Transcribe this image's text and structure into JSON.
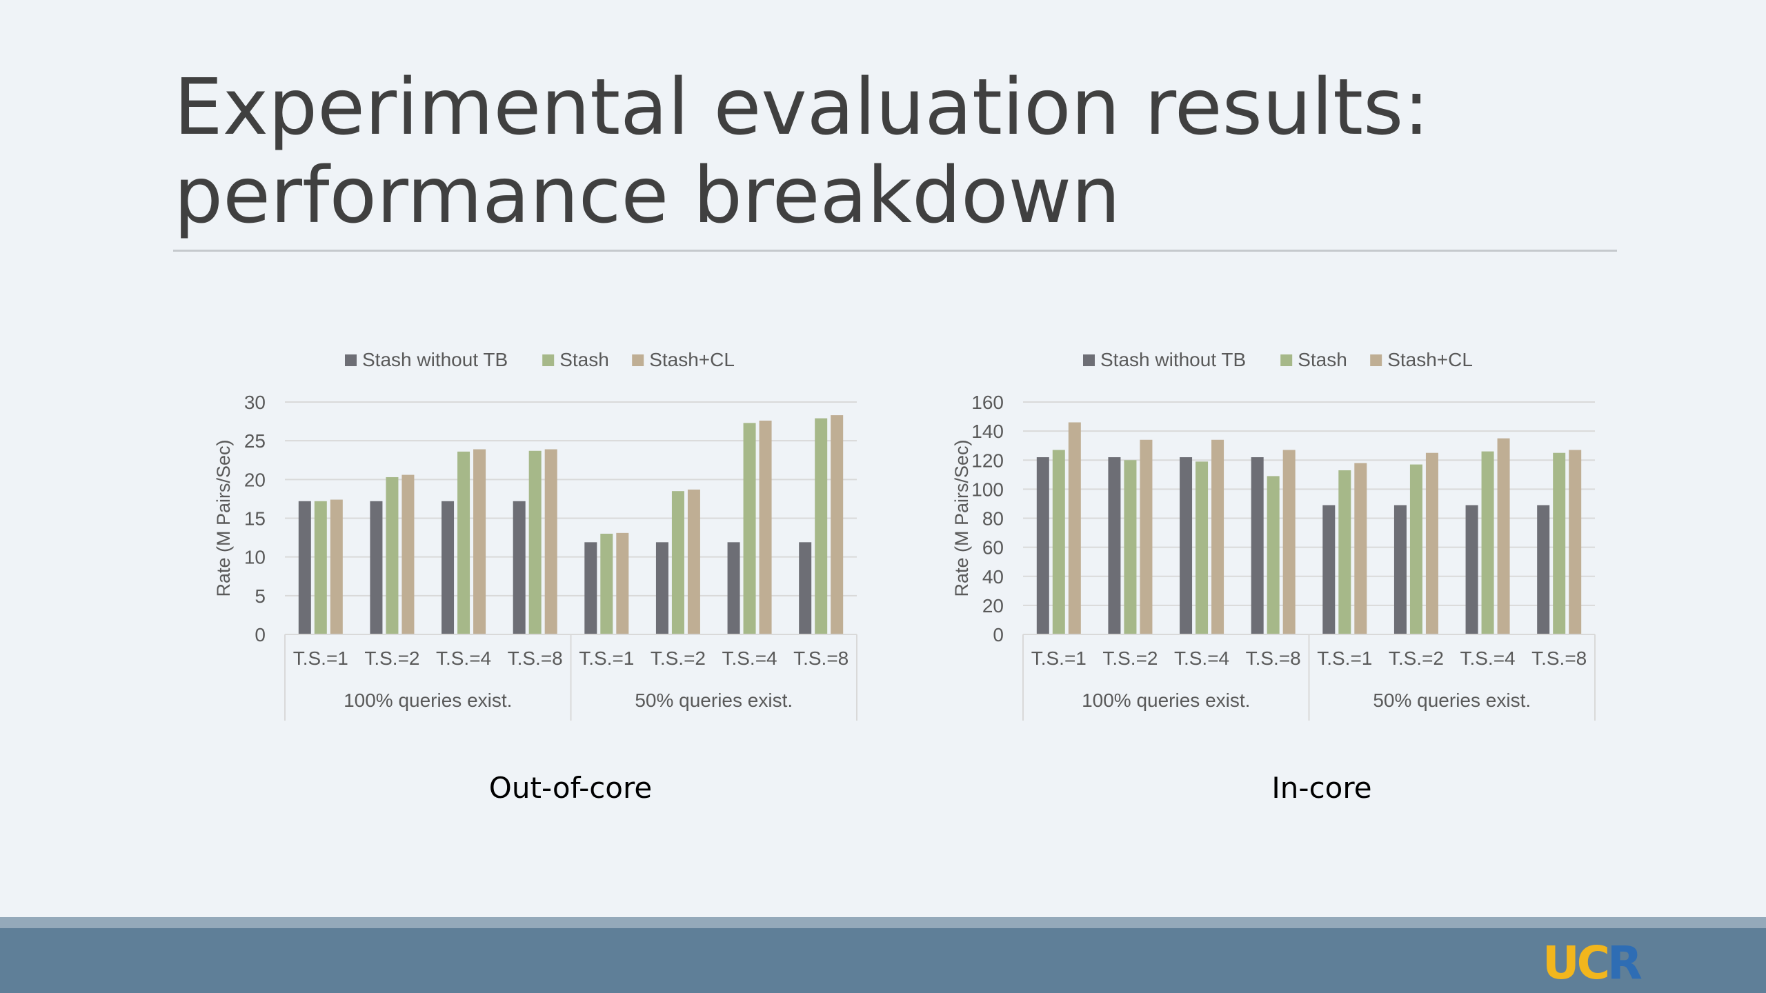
{
  "slide": {
    "title_line1": "Experimental evaluation results:",
    "title_line2": "performance breakdown",
    "logo_text_uc": "UC",
    "logo_text_r": "R"
  },
  "colors": {
    "background": "#eff3f7",
    "footer": "#5f7f98",
    "series": [
      "#6d6e75",
      "#a6b889",
      "#bfae94"
    ]
  },
  "chart_data": [
    {
      "type": "bar",
      "caption": "Out-of-core",
      "ylabel": "Rate (M Pairs/Sec)",
      "ylim": [
        0,
        30
      ],
      "yticks": [
        0,
        5,
        10,
        15,
        20,
        25,
        30
      ],
      "grid": true,
      "legend_position": "top",
      "categories": [
        "T.S.=1",
        "T.S.=2",
        "T.S.=4",
        "T.S.=8",
        "T.S.=1",
        "T.S.=2",
        "T.S.=4",
        "T.S.=8"
      ],
      "groups": [
        {
          "label": "100% queries exist.",
          "span": 4
        },
        {
          "label": "50% queries exist.",
          "span": 4
        }
      ],
      "series": [
        {
          "name": "Stash without TB",
          "values": [
            17.2,
            17.2,
            17.2,
            17.2,
            11.9,
            11.9,
            11.9,
            11.9
          ]
        },
        {
          "name": "Stash",
          "values": [
            17.2,
            20.3,
            23.6,
            23.7,
            13.0,
            18.5,
            27.3,
            27.9
          ]
        },
        {
          "name": "Stash+CL",
          "values": [
            17.4,
            20.6,
            23.9,
            23.9,
            13.1,
            18.7,
            27.6,
            28.3
          ]
        }
      ]
    },
    {
      "type": "bar",
      "caption": "In-core",
      "ylabel": "Rate (M Pairs/Sec)",
      "ylim": [
        0,
        160
      ],
      "yticks": [
        0,
        20,
        40,
        60,
        80,
        100,
        120,
        140,
        160
      ],
      "grid": true,
      "legend_position": "top",
      "categories": [
        "T.S.=1",
        "T.S.=2",
        "T.S.=4",
        "T.S.=8",
        "T.S.=1",
        "T.S.=2",
        "T.S.=4",
        "T.S.=8"
      ],
      "groups": [
        {
          "label": "100% queries exist.",
          "span": 4
        },
        {
          "label": "50% queries exist.",
          "span": 4
        }
      ],
      "series": [
        {
          "name": "Stash without TB",
          "values": [
            122,
            122,
            122,
            122,
            89,
            89,
            89,
            89
          ]
        },
        {
          "name": "Stash",
          "values": [
            127,
            120,
            119,
            109,
            113,
            117,
            126,
            125
          ]
        },
        {
          "name": "Stash+CL",
          "values": [
            146,
            134,
            134,
            127,
            118,
            125,
            135,
            127
          ]
        }
      ]
    }
  ]
}
